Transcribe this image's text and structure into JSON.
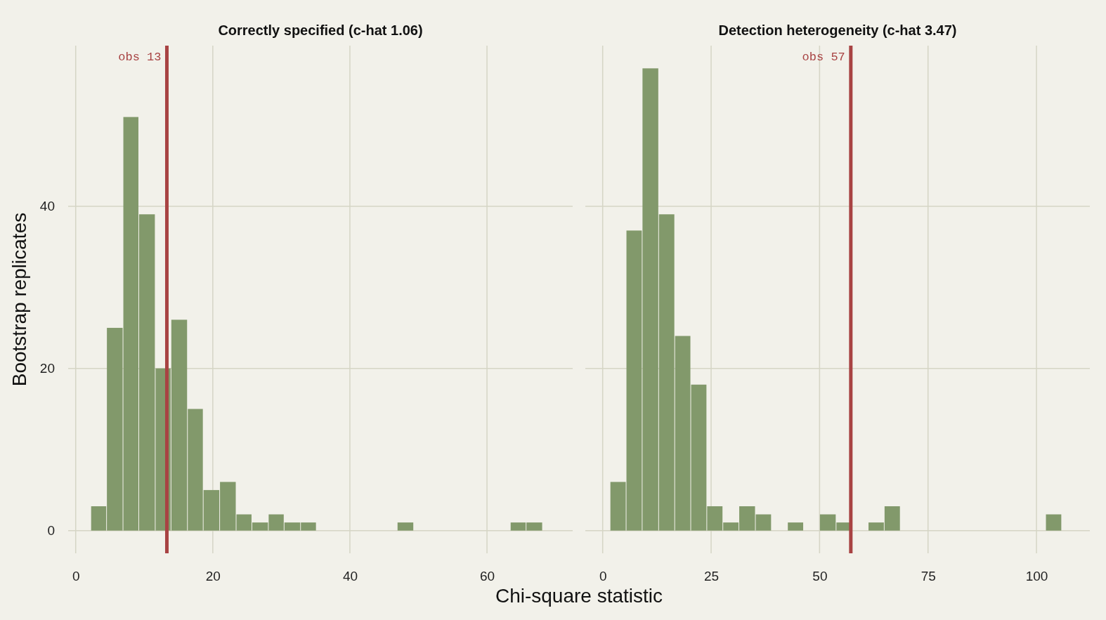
{
  "chart_data": [
    {
      "type": "histogram",
      "title": "Correctly specified (c-hat 1.06)",
      "xlabel": "Chi-square statistic",
      "ylabel": "Bootstrap replicates",
      "bins": [
        2.2,
        4.5,
        6.9,
        9.2,
        11.6,
        13.9,
        16.3,
        18.6,
        21.0,
        23.4,
        25.7,
        28.1,
        30.4,
        32.8,
        35.1,
        46.9,
        49.3,
        63.4,
        65.7,
        68.1
      ],
      "values": [
        3,
        25,
        51,
        39,
        20,
        26,
        15,
        5,
        6,
        2,
        1,
        2,
        1,
        1,
        0,
        1,
        0,
        1,
        1
      ],
      "color": "#82996b",
      "xlim": [
        -1.1,
        72.5
      ],
      "xticks": [
        0,
        20,
        40,
        60
      ],
      "ylim": [
        -2.8,
        59.8
      ],
      "yticks": [
        0,
        20,
        40
      ],
      "grid": true,
      "ref_lines": [
        {
          "axis": "x",
          "value": 13.3,
          "label": "obs 13",
          "color": "#a84343"
        }
      ]
    },
    {
      "type": "histogram",
      "title": "Detection heterogeneity (c-hat 3.47)",
      "bins": [
        1.7,
        5.4,
        9.1,
        12.9,
        16.6,
        20.3,
        24.0,
        27.7,
        31.4,
        35.2,
        38.9,
        42.6,
        46.3,
        50.0,
        53.8,
        57.5,
        61.2,
        64.9,
        68.6,
        102.1,
        105.8
      ],
      "values": [
        6,
        37,
        57,
        39,
        24,
        18,
        3,
        1,
        3,
        2,
        0,
        1,
        0,
        2,
        1,
        0,
        1,
        3,
        0,
        2
      ],
      "color": "#82996b",
      "xlim": [
        -4.0,
        112.3
      ],
      "xticks": [
        0,
        25,
        50,
        75,
        100
      ],
      "ylim": [
        -2.8,
        59.8
      ],
      "yticks": [
        0,
        20,
        40
      ],
      "grid": true,
      "tick_labels": "x",
      "ref_lines": [
        {
          "axis": "x",
          "value": 57.2,
          "label": "obs 57",
          "color": "#a84343"
        }
      ]
    }
  ]
}
